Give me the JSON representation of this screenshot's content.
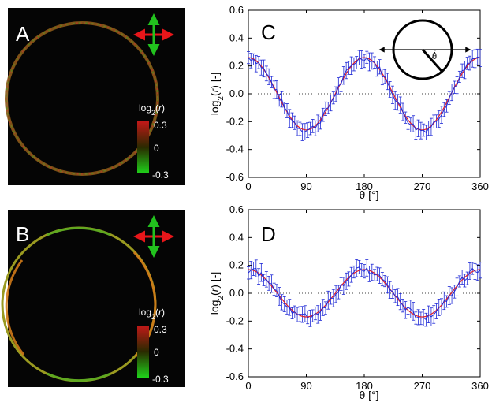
{
  "panels": {
    "A": {
      "letter": "A",
      "colorbar_title": "log2(r)",
      "colorbar_max": "0.3",
      "colorbar_mid": "0",
      "colorbar_min": "-0.3"
    },
    "B": {
      "letter": "B",
      "colorbar_title": "log2(r)",
      "colorbar_max": "0.3",
      "colorbar_mid": "0",
      "colorbar_min": "-0.3"
    },
    "C": {
      "letter": "C",
      "inset_symbol": "θ"
    },
    "D": {
      "letter": "D"
    }
  },
  "colors": {
    "red": "#e8161a",
    "green": "#22c21e",
    "series": "#1f2ad6",
    "fit": "#e0202a"
  },
  "chart_data": [
    {
      "type": "line",
      "panel": "C",
      "xlabel": "θ [°]",
      "ylabel": "log2(r) [-]",
      "xlim": [
        0,
        360
      ],
      "ylim": [
        -0.6,
        0.6
      ],
      "xticks": [
        "0",
        "90",
        "180",
        "270",
        "360"
      ],
      "yticks": [
        "0.6",
        "0.4",
        "0.2",
        "0.0",
        "-0.2",
        "-0.4",
        "-0.6"
      ],
      "amplitude": 0.26,
      "error": 0.05,
      "reference_line": 0.0
    },
    {
      "type": "line",
      "panel": "D",
      "xlabel": "θ [°]",
      "ylabel": "log2(r) [-]",
      "xlim": [
        0,
        360
      ],
      "ylim": [
        -0.6,
        0.6
      ],
      "xticks": [
        "0",
        "90",
        "180",
        "270",
        "360"
      ],
      "yticks": [
        "0.6",
        "0.4",
        "0.2",
        "0.0",
        "-0.2",
        "-0.4",
        "-0.6"
      ],
      "amplitude": 0.17,
      "error": 0.05,
      "reference_line": 0.0
    }
  ]
}
